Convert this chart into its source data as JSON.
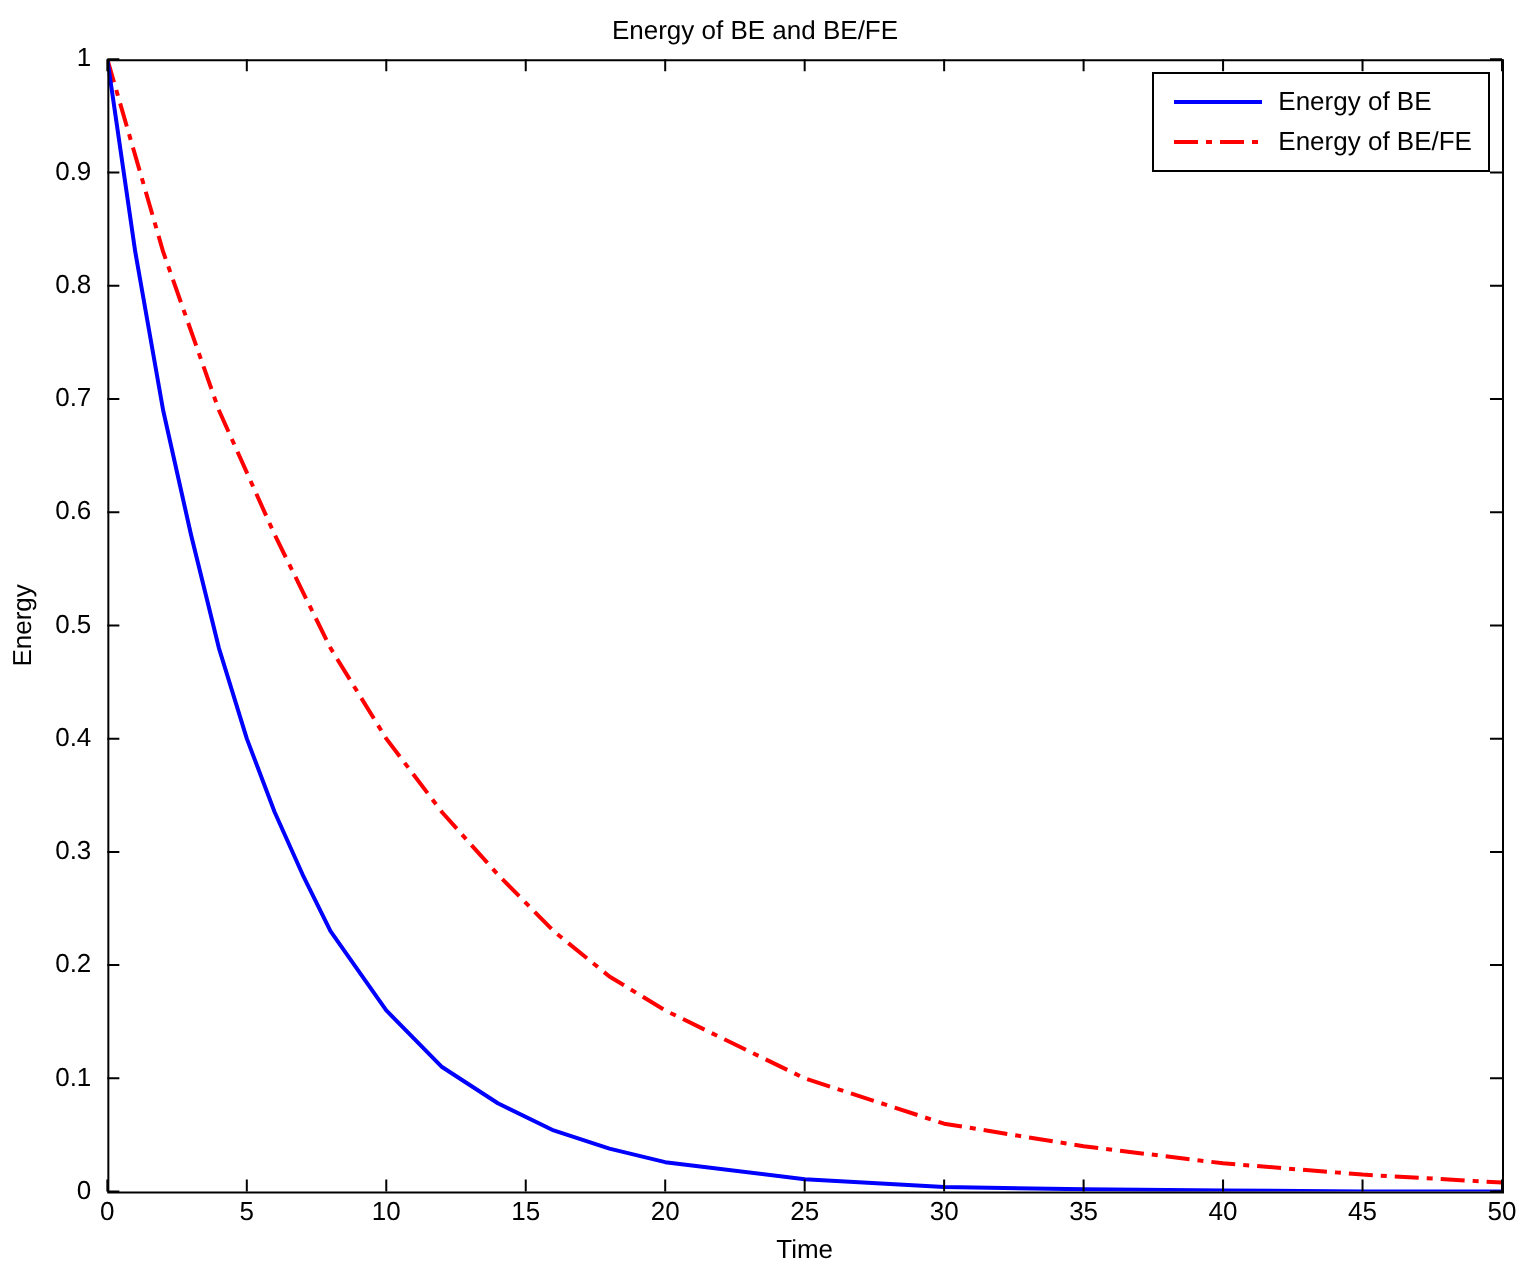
{
  "chart_data": {
    "type": "line",
    "title": "Energy of BE and BE/FE",
    "xlabel": "Time",
    "ylabel": "Energy",
    "xlim": [
      0,
      50
    ],
    "xticks": [
      0,
      5,
      10,
      15,
      20,
      25,
      30,
      35,
      40,
      45,
      50
    ],
    "ylim": [
      0,
      1
    ],
    "yticks": [
      0,
      0.1,
      0.2,
      0.3,
      0.4,
      0.5,
      0.6,
      0.7,
      0.8,
      0.9,
      1
    ],
    "grid": false,
    "legend": "top right",
    "marker": "none",
    "series": [
      {
        "name": "Energy of BE",
        "color": "#0000ff",
        "line_style": "solid",
        "x": [
          0,
          1,
          2,
          3,
          4,
          5,
          6,
          7,
          8,
          10,
          12,
          14,
          16,
          18,
          20,
          25,
          30,
          35,
          40,
          45,
          50
        ],
        "values": [
          1,
          0.83,
          0.69,
          0.58,
          0.48,
          0.4,
          0.335,
          0.28,
          0.23,
          0.16,
          0.11,
          0.078,
          0.054,
          0.038,
          0.026,
          0.011,
          0.004,
          0.002,
          0.001,
          0,
          0
        ]
      },
      {
        "name": "Energy of BE/FE",
        "color": "#ff0000",
        "line_style": "dashed",
        "x": [
          0,
          2,
          4,
          6,
          8,
          10,
          12,
          14,
          16,
          18,
          20,
          25,
          30,
          35,
          40,
          45,
          50
        ],
        "values": [
          1,
          0.83,
          0.69,
          0.58,
          0.48,
          0.4,
          0.335,
          0.28,
          0.23,
          0.19,
          0.16,
          0.1,
          0.06,
          0.04,
          0.025,
          0.015,
          0.008
        ]
      }
    ]
  }
}
